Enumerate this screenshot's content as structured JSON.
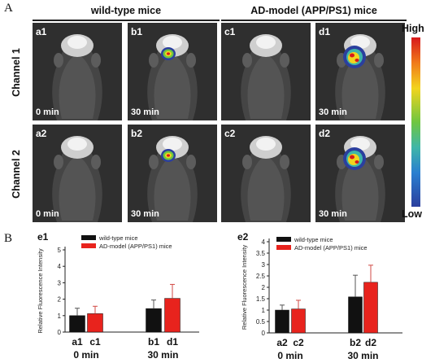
{
  "figure": {
    "panel_a": "A",
    "panel_b": "B",
    "group_wt": "wild-type mice",
    "group_ad": "AD-model (APP/PS1) mice",
    "channel_1": "Channel 1",
    "channel_2": "Channel 2",
    "colorbar": {
      "high": "High",
      "low": "Low"
    }
  },
  "panels": [
    {
      "id": "a1",
      "time": "0 min",
      "signal": "none"
    },
    {
      "id": "b1",
      "time": "30 min",
      "signal": "small"
    },
    {
      "id": "c1",
      "time": "",
      "signal": "none"
    },
    {
      "id": "d1",
      "time": "30 min",
      "signal": "large"
    },
    {
      "id": "a2",
      "time": "0 min",
      "signal": "none"
    },
    {
      "id": "b2",
      "time": "30 min",
      "signal": "small"
    },
    {
      "id": "c2",
      "time": "",
      "signal": "none"
    },
    {
      "id": "d2",
      "time": "30 min",
      "signal": "large"
    }
  ],
  "chart_data": [
    {
      "type": "bar",
      "title": "e1",
      "ylabel": "Relative Fluorescence Intensity",
      "ylim": [
        0,
        5
      ],
      "yticks": [
        "0",
        "1",
        "2",
        "3",
        "4",
        "5"
      ],
      "legend": [
        "wild-type mice",
        "AD-model (APP/PS1) mice"
      ],
      "colors": [
        "#111111",
        "#e8231d"
      ],
      "categories": [
        "a1",
        "c1",
        "b1",
        "d1"
      ],
      "values": [
        1.0,
        1.12,
        1.43,
        2.05
      ],
      "errors": [
        0.45,
        0.45,
        0.52,
        0.85
      ],
      "series_index": [
        0,
        1,
        0,
        1
      ],
      "group_labels": [
        "0 min",
        "30 min"
      ]
    },
    {
      "type": "bar",
      "title": "e2",
      "ylabel": "Relative Fluorescence Intensity",
      "ylim": [
        0,
        4
      ],
      "yticks": [
        "0",
        "0.5",
        "1",
        "1.5",
        "2",
        "2.5",
        "3",
        "3.5",
        "4"
      ],
      "legend": [
        "wild-type mice",
        "AD-model (APP/PS1) mice"
      ],
      "colors": [
        "#111111",
        "#e8231d"
      ],
      "categories": [
        "a2",
        "c2",
        "b2",
        "d2"
      ],
      "values": [
        1.0,
        1.05,
        1.58,
        2.22
      ],
      "errors": [
        0.22,
        0.38,
        0.95,
        0.75
      ],
      "series_index": [
        0,
        1,
        0,
        1
      ],
      "group_labels": [
        "0 min",
        "30 min"
      ]
    }
  ]
}
